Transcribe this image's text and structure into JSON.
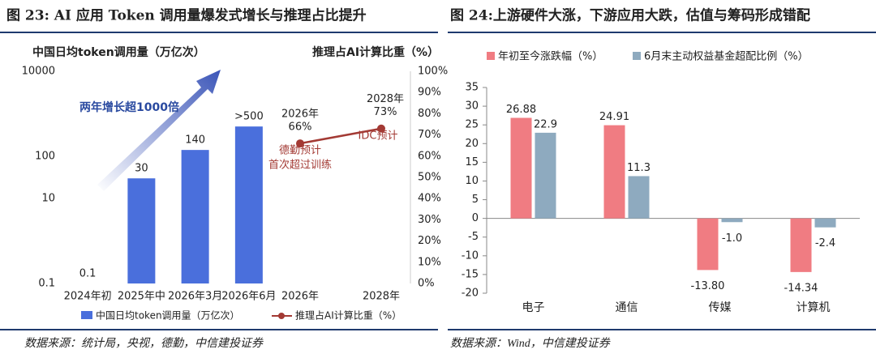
{
  "figures": [
    {
      "title": "图 23: AI 应用 Token 调用量爆发式增长与推理占比提升",
      "source": "数据来源：统计局，央视，德勤，中信建投证券"
    },
    {
      "title": "图 24:上游硬件大涨，下游应用大跌，估值与筹码形成错配",
      "source": "数据来源：Wind，中信建投证券"
    }
  ],
  "chart_data": [
    {
      "type": "bar",
      "title": "中国日均token调用量（万亿次）",
      "categories": [
        "2024年初",
        "2025年中",
        "2026年3月",
        "2026年6月"
      ],
      "series": [
        {
          "name": "中国日均token调用量（万亿次）",
          "color": "#4a6fdc",
          "values": [
            0.1,
            30,
            140,
            500
          ],
          "value_labels": [
            "0.1",
            "30",
            "140",
            ">500"
          ]
        }
      ],
      "ylim": [
        0.1,
        10000
      ],
      "yticks": [
        0.1,
        10,
        100,
        10000
      ],
      "log_scale": true,
      "annotations": [
        "两年增长超1000倍"
      ]
    },
    {
      "type": "line",
      "title": "推理占AI计算比重（%）",
      "categories": [
        "2026年",
        "2028年"
      ],
      "series": [
        {
          "name": "推理占AI计算比重（%）",
          "color": "#a33a34",
          "values": [
            66,
            73
          ],
          "value_labels": [
            "66%",
            "73%"
          ]
        }
      ],
      "ylim": [
        0,
        100
      ],
      "yticks": [
        {
          "value": 0,
          "label": "0%"
        },
        {
          "value": 10,
          "label": "10%"
        },
        {
          "value": 20,
          "label": "20%"
        },
        {
          "value": 30,
          "label": "30%"
        },
        {
          "value": 40,
          "label": "40%"
        },
        {
          "value": 50,
          "label": "50%"
        },
        {
          "value": 60,
          "label": "60%"
        },
        {
          "value": 70,
          "label": "70%"
        },
        {
          "value": 80,
          "label": "80%"
        },
        {
          "value": 90,
          "label": "90%"
        },
        {
          "value": 100,
          "label": "100%"
        }
      ],
      "annotations": [
        "德勤预计",
        "首次超过训练",
        "IDC预计"
      ]
    },
    {
      "type": "grouped_bar",
      "categories": [
        "电子",
        "通信",
        "传媒",
        "计算机"
      ],
      "series": [
        {
          "name": "年初至今涨跌幅（%）",
          "color": "#f07c82",
          "values": [
            26.88,
            24.91,
            -13.8,
            -14.34
          ],
          "value_labels": [
            "26.88",
            "24.91",
            "-13.80",
            "-14.34"
          ]
        },
        {
          "name": "6月末主动权益基金超配比例（%）",
          "color": "#8eaabf",
          "values": [
            22.9,
            11.3,
            -1.0,
            -2.4
          ],
          "value_labels": [
            "22.9",
            "11.3",
            "-1.0",
            "-2.4"
          ]
        }
      ],
      "ylim": [
        -20,
        35
      ],
      "yticks": [
        -20,
        -15,
        -10,
        -5,
        0,
        5,
        10,
        15,
        20,
        25,
        30,
        35
      ],
      "legend": "top"
    }
  ]
}
